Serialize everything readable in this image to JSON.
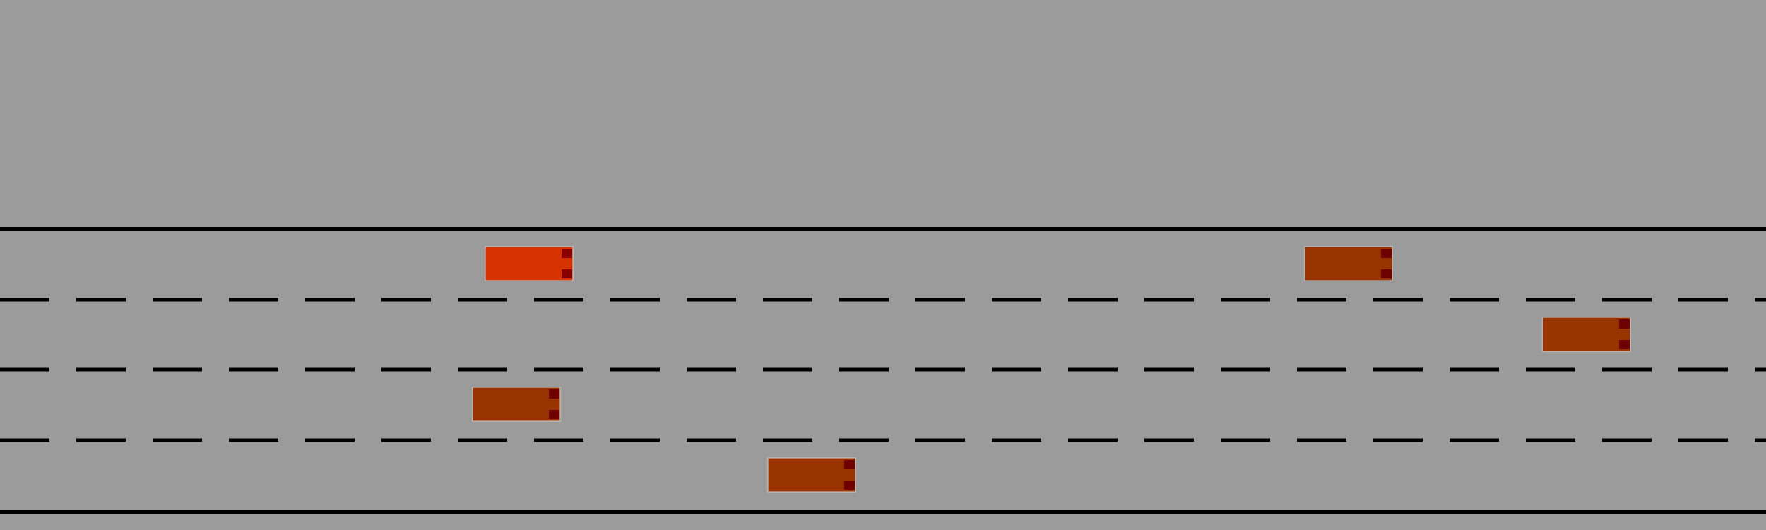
{
  "colors": {
    "background": "#9b9b9b",
    "road_line": "#000000",
    "ego_car_body": "#d63300",
    "other_car_body": "#993300",
    "car_light": "#6e0000",
    "car_outline": "#cfcfcf"
  },
  "road": {
    "lane_count": 4,
    "boundary_style": "solid",
    "divider_style": "dashed"
  },
  "vehicles": [
    {
      "id": "ego",
      "role": "ego",
      "lane": 1,
      "heading": "right"
    },
    {
      "id": "car-1",
      "role": "other",
      "lane": 1,
      "heading": "right"
    },
    {
      "id": "car-2",
      "role": "other",
      "lane": 2,
      "heading": "right"
    },
    {
      "id": "car-3",
      "role": "other",
      "lane": 3,
      "heading": "right"
    },
    {
      "id": "car-4",
      "role": "other",
      "lane": 4,
      "heading": "right"
    }
  ]
}
